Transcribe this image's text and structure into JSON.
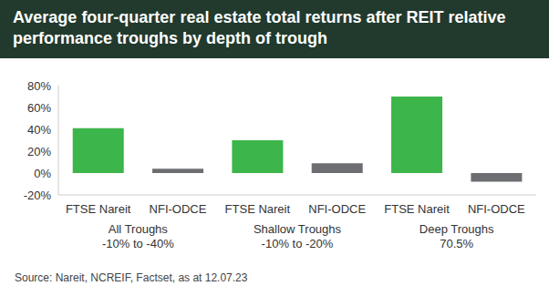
{
  "chart_data": {
    "type": "bar",
    "title": "Average four-quarter real estate total returns after REIT relative performance troughs by depth of trough",
    "categories": [
      "FTSE Nareit",
      "NFI-ODCE",
      "FTSE Nareit",
      "NFI-ODCE",
      "FTSE Nareit",
      "NFI-ODCE"
    ],
    "values": [
      41,
      4,
      30,
      9,
      70,
      -8
    ],
    "colors": [
      "#3cb54a",
      "#6d6e71",
      "#3cb54a",
      "#6d6e71",
      "#3cb54a",
      "#6d6e71"
    ],
    "groups": [
      [
        "All Troughs",
        "-10% to -40%"
      ],
      [
        "Shallow Troughs",
        "-10% to -20%"
      ],
      [
        "Deep Troughs",
        "70.5%"
      ]
    ],
    "ylim": [
      -20,
      80
    ],
    "yticks": [
      {
        "value": -20,
        "label": "-20%"
      },
      {
        "value": 0,
        "label": "0%"
      },
      {
        "value": 20,
        "label": "20%"
      },
      {
        "value": 40,
        "label": "40%"
      },
      {
        "value": 60,
        "label": "60%"
      },
      {
        "value": 80,
        "label": "80%"
      }
    ],
    "grid": false,
    "source": "Source: Nareit, NCREIF, Factset, as at 12.07.23"
  }
}
